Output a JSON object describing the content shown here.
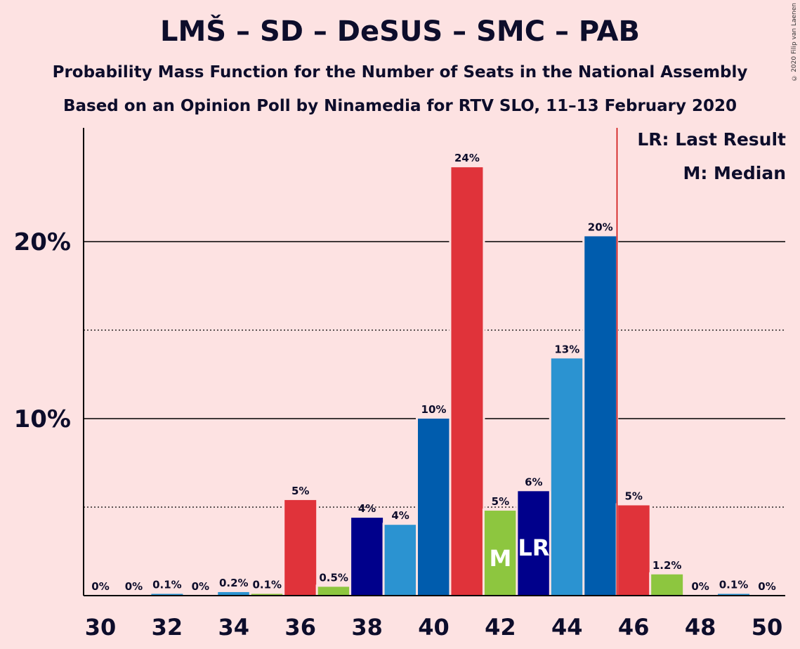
{
  "header": {
    "title": "LMŠ – SD – DeSUS – SMC – PAB",
    "subtitle1": "Probability Mass Function for the Number of Seats in the National Assembly",
    "subtitle2": "Based on an Opinion Poll by Ninamedia for RTV SLO, 11–13 February 2020",
    "credit": "© 2020 Filip van Laenen"
  },
  "legend": {
    "lr": "LR: Last Result",
    "m": "M: Median"
  },
  "colors": {
    "background": "#fde2e2",
    "red": "#e0333a",
    "navy": "#00008b",
    "sky": "#2b93d1",
    "blue": "#005cad",
    "green": "#8dc63f",
    "majority_line": "#cc0000"
  },
  "chart_data": {
    "type": "bar",
    "x": [
      30,
      31,
      32,
      33,
      34,
      35,
      36,
      37,
      38,
      39,
      40,
      41,
      42,
      43,
      44,
      45,
      46,
      47,
      48,
      49,
      50
    ],
    "values": [
      0,
      0,
      0.1,
      0,
      0.2,
      0.1,
      5.4,
      0.5,
      4.4,
      4.0,
      10.0,
      24.2,
      4.8,
      5.9,
      13.4,
      20.3,
      5.1,
      1.2,
      0,
      0.1,
      0
    ],
    "labels": [
      "0%",
      "0%",
      "0.1%",
      "0%",
      "0.2%",
      "0.1%",
      "5%",
      "0.5%",
      "4%",
      "4%",
      "10%",
      "24%",
      "5%",
      "6%",
      "13%",
      "20%",
      "5%",
      "1.2%",
      "0%",
      "0.1%",
      "0%"
    ],
    "bar_colors": [
      "red",
      "navy",
      "sky",
      "blue",
      "sky",
      "green",
      "red",
      "green",
      "navy",
      "sky",
      "blue",
      "red",
      "green",
      "navy",
      "sky",
      "blue",
      "red",
      "green",
      "navy",
      "sky",
      "blue"
    ],
    "xticks": [
      "30",
      "32",
      "34",
      "36",
      "38",
      "40",
      "42",
      "44",
      "46",
      "48",
      "50"
    ],
    "ytick_labels": [
      "10%",
      "20%"
    ],
    "ylim": [
      0,
      26.4
    ],
    "solid_gridlines": [
      10,
      20
    ],
    "dotted_gridlines": [
      5,
      15
    ],
    "median_seat": 42,
    "median_label": "M",
    "last_result_seat": 43,
    "last_result_label": "LR",
    "majority_line_after_seat": 45
  }
}
